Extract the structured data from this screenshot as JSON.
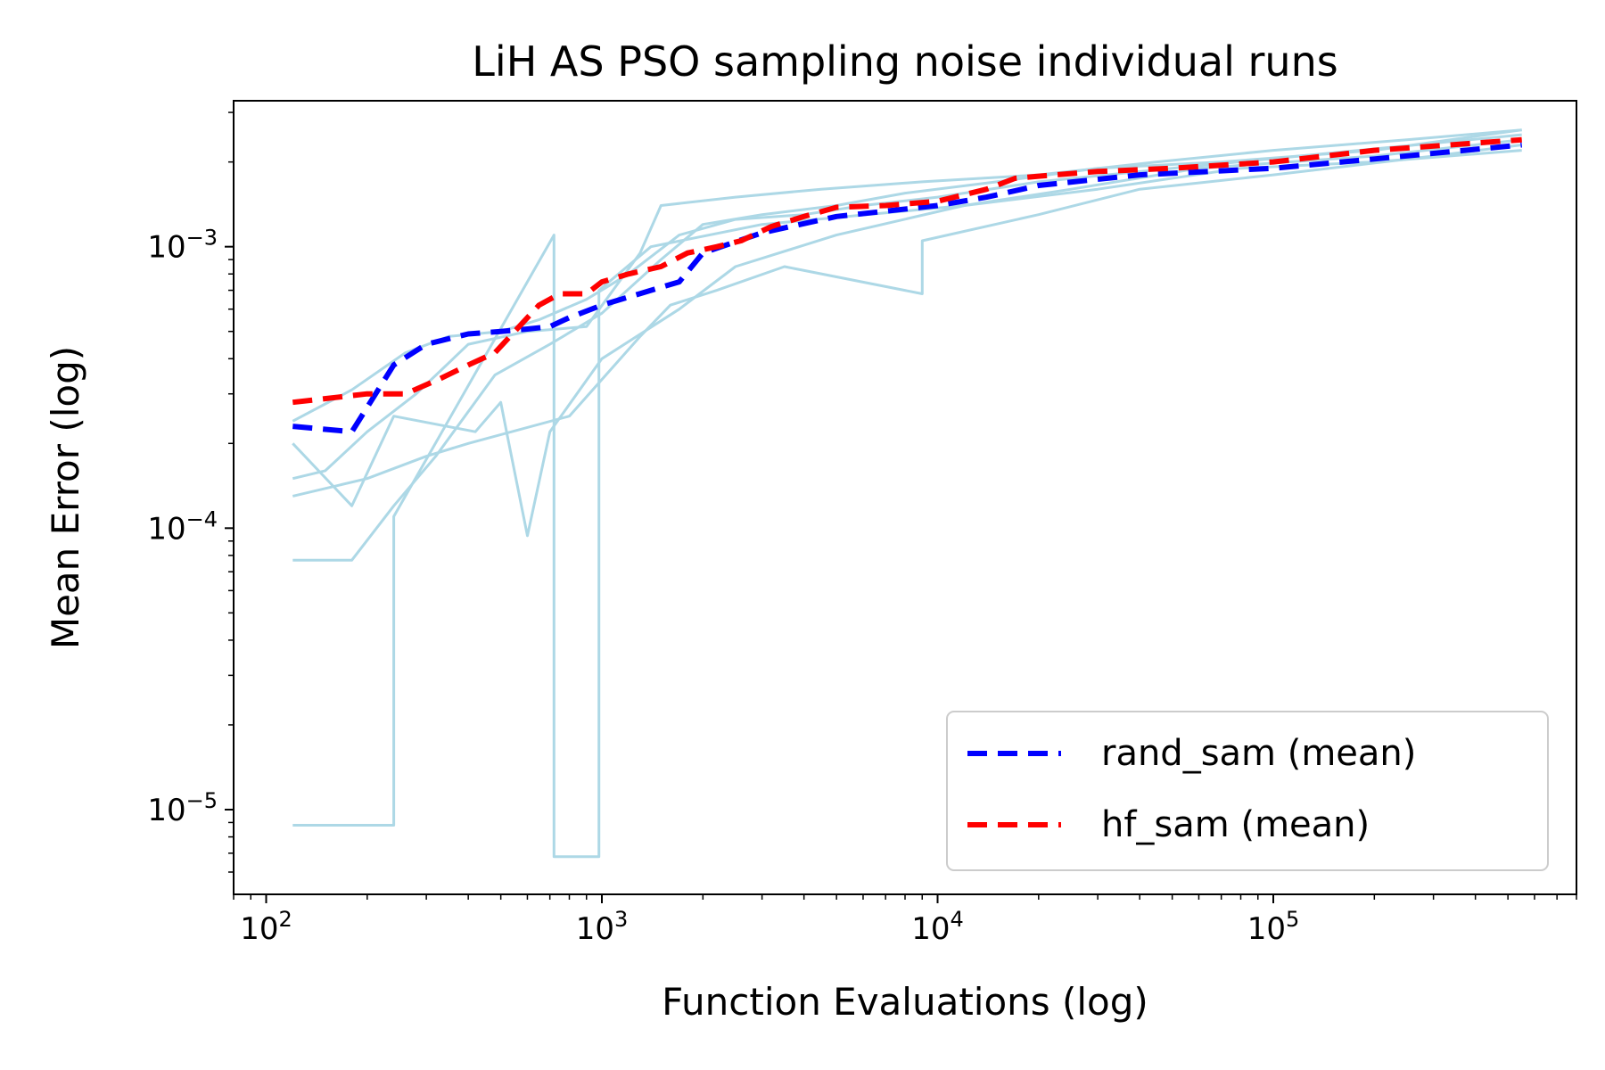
{
  "chart_data": {
    "type": "line",
    "title": "LiH AS PSO sampling noise individual runs",
    "xlabel": "Function Evaluations (log)",
    "ylabel": "Mean Error (log)",
    "xscale": "log",
    "yscale": "log",
    "xlim": [
      80,
      800000
    ],
    "ylim": [
      5e-06,
      0.0033
    ],
    "x_ticks": [
      {
        "value": 100,
        "base": "10",
        "exp": "2"
      },
      {
        "value": 1000,
        "base": "10",
        "exp": "3"
      },
      {
        "value": 10000,
        "base": "10",
        "exp": "4"
      },
      {
        "value": 100000,
        "base": "10",
        "exp": "5"
      }
    ],
    "y_ticks": [
      {
        "value": 1e-05,
        "base": "10",
        "exp": "−5"
      },
      {
        "value": 0.0001,
        "base": "10",
        "exp": "−4"
      },
      {
        "value": 0.001,
        "base": "10",
        "exp": "−3"
      }
    ],
    "grid": false,
    "legend_position": "lower-right",
    "colors": {
      "rand_runs": "#add8e6",
      "hf_runs": "#f08080",
      "rand_mean": "#0000ff",
      "hf_mean": "#ff0000"
    },
    "series": [
      {
        "name": "rand_sam (mean)",
        "group": "rand_mean",
        "x": [
          120,
          180,
          240,
          300,
          400,
          500,
          600,
          700,
          800,
          1000,
          1400,
          1700,
          2000,
          3000,
          5000,
          10000,
          14000,
          20000,
          40000,
          100000,
          200000,
          550000
        ],
        "y": [
          0.00023,
          0.00022,
          0.00038,
          0.00045,
          0.00049,
          0.0005,
          0.00051,
          0.00052,
          0.00056,
          0.00062,
          0.0007,
          0.00075,
          0.00095,
          0.00112,
          0.00128,
          0.0014,
          0.0015,
          0.00165,
          0.0018,
          0.0019,
          0.00205,
          0.0023
        ]
      },
      {
        "name": "hf_sam (mean)",
        "group": "hf_mean",
        "x": [
          120,
          200,
          260,
          330,
          400,
          480,
          550,
          650,
          750,
          900,
          1000,
          1200,
          1500,
          1800,
          2200,
          2600,
          3200,
          4000,
          5000,
          7000,
          10000,
          14000,
          17000,
          20000,
          30000,
          50000,
          100000,
          200000,
          550000
        ],
        "y": [
          0.00028,
          0.0003,
          0.0003,
          0.00034,
          0.00038,
          0.00042,
          0.0005,
          0.00062,
          0.00068,
          0.00068,
          0.00075,
          0.0008,
          0.00085,
          0.00095,
          0.001,
          0.00105,
          0.00118,
          0.00128,
          0.00138,
          0.0014,
          0.00145,
          0.0016,
          0.00175,
          0.00178,
          0.00185,
          0.0019,
          0.002,
          0.0022,
          0.0024
        ]
      },
      {
        "group": "rand_runs",
        "x": [
          120,
          240,
          240,
          720,
          720,
          980,
          980,
          1400,
          3000,
          12000,
          25000,
          60000,
          200000,
          550000
        ],
        "y": [
          8.8e-06,
          8.8e-06,
          0.00011,
          0.0011,
          6.8e-06,
          6.8e-06,
          0.0007,
          0.001,
          0.0012,
          0.0014,
          0.0016,
          0.0019,
          0.0021,
          0.0024
        ]
      },
      {
        "group": "rand_runs",
        "x": [
          120,
          180,
          240,
          420,
          500,
          520,
          600,
          700,
          1000,
          1700,
          2500,
          5000,
          12000,
          30000,
          80000,
          200000,
          550000
        ],
        "y": [
          0.0002,
          0.00012,
          0.00025,
          0.00022,
          0.00028,
          0.00022,
          9.4e-05,
          0.00022,
          0.0004,
          0.0006,
          0.00085,
          0.0011,
          0.0014,
          0.0016,
          0.0019,
          0.002,
          0.0022
        ]
      },
      {
        "group": "rand_runs",
        "x": [
          120,
          200,
          300,
          400,
          800,
          1300,
          1600,
          2200,
          3500,
          9000,
          9000,
          20000,
          40000,
          100000,
          300000,
          550000
        ],
        "y": [
          0.00013,
          0.00015,
          0.00018,
          0.0002,
          0.00025,
          0.00048,
          0.00062,
          0.0007,
          0.00085,
          0.00068,
          0.00105,
          0.0013,
          0.0016,
          0.0018,
          0.0021,
          0.0023
        ]
      },
      {
        "group": "rand_runs",
        "x": [
          120,
          180,
          260,
          350,
          500,
          650,
          900,
          1200,
          1700,
          2500,
          4000,
          6000,
          10000,
          20000,
          50000,
          120000,
          550000
        ],
        "y": [
          0.00024,
          0.00031,
          0.00042,
          0.00048,
          0.0005,
          0.00055,
          0.00065,
          0.0008,
          0.0011,
          0.00125,
          0.0013,
          0.0014,
          0.0015,
          0.0017,
          0.0019,
          0.0021,
          0.0025
        ]
      },
      {
        "group": "rand_runs",
        "x": [
          120,
          180,
          240,
          320,
          480,
          700,
          1000,
          1500,
          2000,
          3000,
          5000,
          8000,
          15000,
          30000,
          70000,
          200000,
          550000
        ],
        "y": [
          7.7e-05,
          7.7e-05,
          0.00012,
          0.00018,
          0.00035,
          0.00045,
          0.00058,
          0.0009,
          0.0012,
          0.0013,
          0.0014,
          0.00155,
          0.0017,
          0.0019,
          0.002,
          0.0022,
          0.0026
        ]
      },
      {
        "group": "rand_runs",
        "x": [
          120,
          150,
          200,
          280,
          400,
          600,
          900,
          1300,
          1500,
          2500,
          4500,
          9000,
          20000,
          45000,
          100000,
          250000,
          550000
        ],
        "y": [
          0.00015,
          0.00016,
          0.00022,
          0.0003,
          0.00045,
          0.0005,
          0.00052,
          0.00095,
          0.0014,
          0.0015,
          0.0016,
          0.0017,
          0.0018,
          0.002,
          0.0022,
          0.0024,
          0.0026
        ]
      }
    ]
  }
}
